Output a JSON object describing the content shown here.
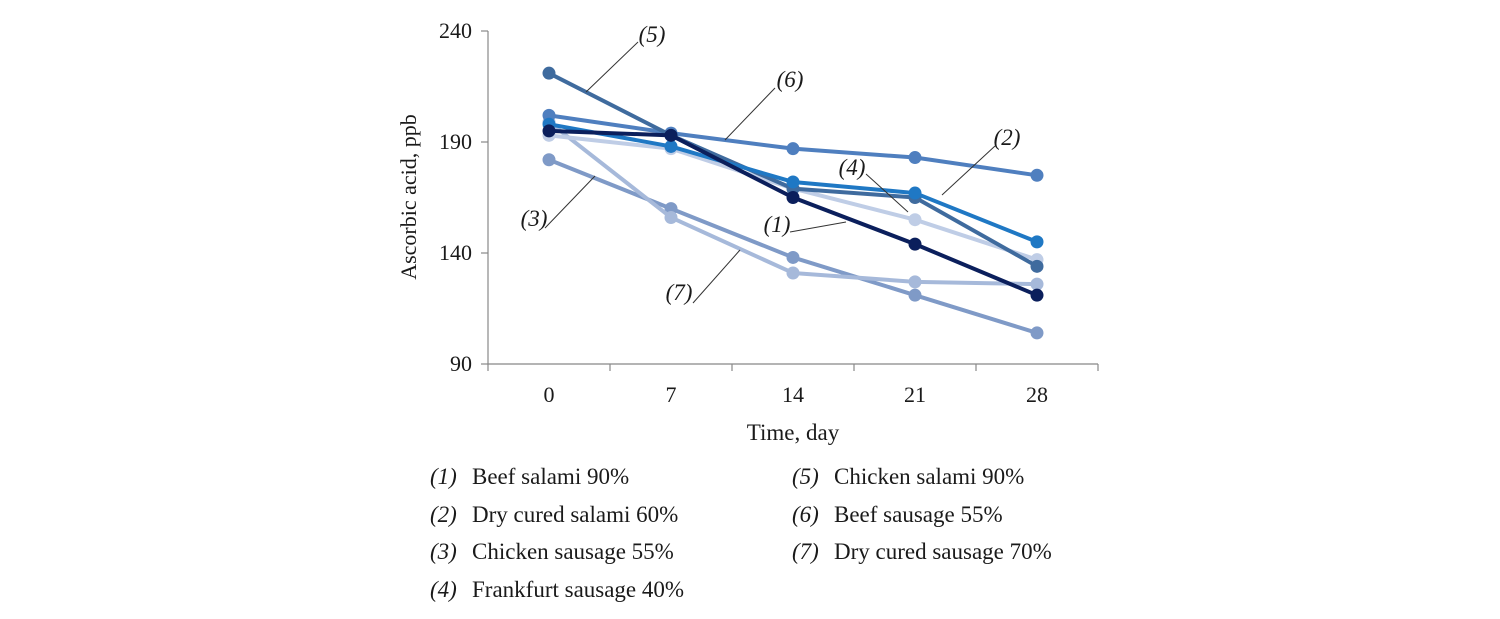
{
  "chart_data": {
    "type": "line",
    "xlabel": "Time, day",
    "ylabel": "Ascorbic acid, ppb",
    "x": [
      0,
      7,
      14,
      21,
      28
    ],
    "x_tick_labels": [
      "0",
      "7",
      "14",
      "21",
      "28"
    ],
    "ylim": [
      90,
      240
    ],
    "y_ticks": [
      90,
      140,
      190,
      240
    ],
    "grid": false,
    "legend_position": "bottom",
    "series": [
      {
        "label": "(1)",
        "name": "Beef salami 90%",
        "color": "#0b1f5c",
        "values": [
          195,
          193,
          165,
          144,
          121
        ]
      },
      {
        "label": "(2)",
        "name": "Dry cured salami 60%",
        "color": "#1f78c4",
        "values": [
          198,
          188,
          172,
          167,
          145
        ]
      },
      {
        "label": "(3)",
        "name": "Chicken sausage 55%",
        "color": "#7f9ac7",
        "values": [
          182,
          160,
          138,
          121,
          104
        ]
      },
      {
        "label": "(4)",
        "name": "Frankfurt sausage 40%",
        "color": "#bfcde6",
        "values": [
          193,
          187,
          169,
          155,
          137
        ]
      },
      {
        "label": "(5)",
        "name": "Chicken salami 90%",
        "color": "#3f6b9e",
        "values": [
          221,
          193,
          169,
          165,
          134
        ]
      },
      {
        "label": "(6)",
        "name": "Beef sausage 55%",
        "color": "#4f7fbf",
        "values": [
          202,
          194,
          187,
          183,
          175
        ]
      },
      {
        "label": "(7)",
        "name": "Dry cured sausage 70%",
        "color": "#a6b9da",
        "values": [
          199,
          156,
          131,
          127,
          126
        ]
      }
    ]
  }
}
